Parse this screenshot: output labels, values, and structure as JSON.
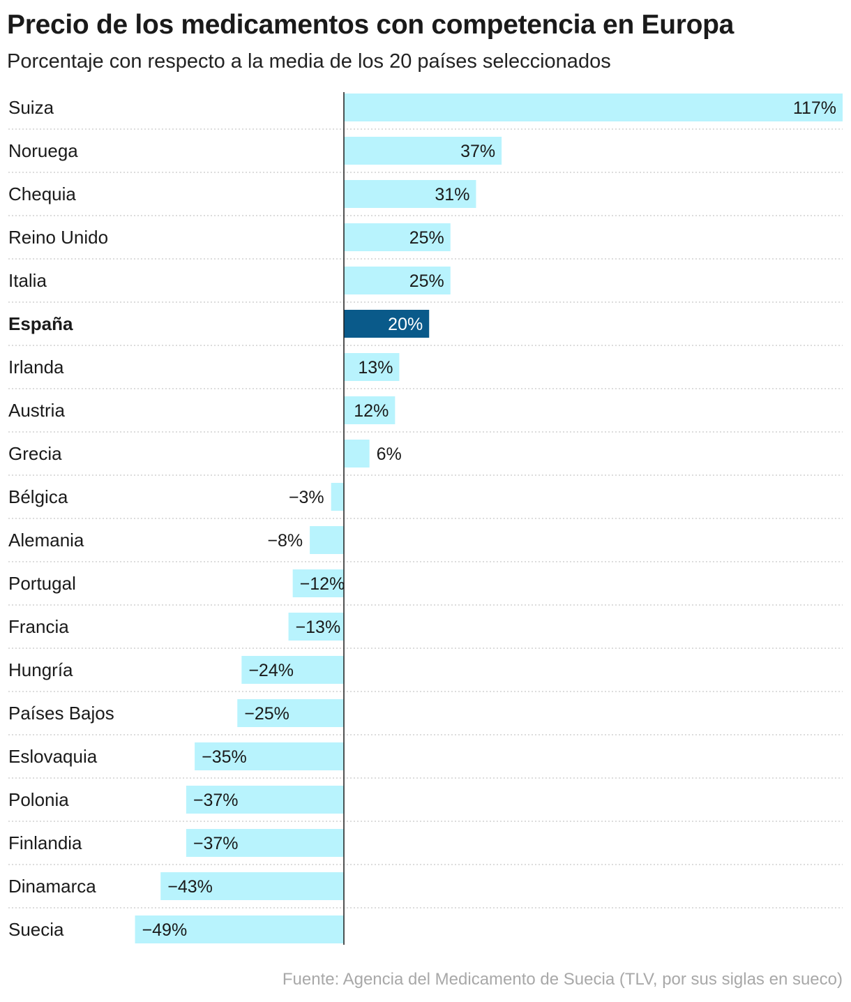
{
  "chart_data": {
    "type": "bar",
    "orientation": "horizontal",
    "title": "Precio de los medicamentos con competencia en Europa",
    "subtitle": "Porcentaje con respecto a la media de los 20 países seleccionados",
    "source": "Fuente: Agencia del Medicamento de Suecia (TLV, por sus siglas en sueco)",
    "unit": "%",
    "xlim": [
      -59,
      117
    ],
    "categories": [
      "Suiza",
      "Noruega",
      "Chequia",
      "Reino Unido",
      "Italia",
      "España",
      "Irlanda",
      "Austria",
      "Grecia",
      "Bélgica",
      "Alemania",
      "Portugal",
      "Francia",
      "Hungría",
      "Países Bajos",
      "Eslovaquia",
      "Polonia",
      "Finlandia",
      "Dinamarca",
      "Suecia"
    ],
    "values": [
      117,
      37,
      31,
      25,
      25,
      20,
      13,
      12,
      6,
      -3,
      -8,
      -12,
      -13,
      -24,
      -25,
      -35,
      -37,
      -37,
      -43,
      -49
    ],
    "value_labels": [
      "117%",
      "37%",
      "31%",
      "25%",
      "25%",
      "20%",
      "13%",
      "12%",
      "6%",
      "−3%",
      "−8%",
      "−12%",
      "−13%",
      "−24%",
      "−25%",
      "−35%",
      "−37%",
      "−37%",
      "−43%",
      "−49%"
    ],
    "highlight": "España",
    "colors": {
      "bar": "#b8f3fd",
      "highlight": "#0a5a8a",
      "text": "#1a1a1a",
      "source": "#a8a8a8"
    },
    "grid": false,
    "legend": "none"
  }
}
